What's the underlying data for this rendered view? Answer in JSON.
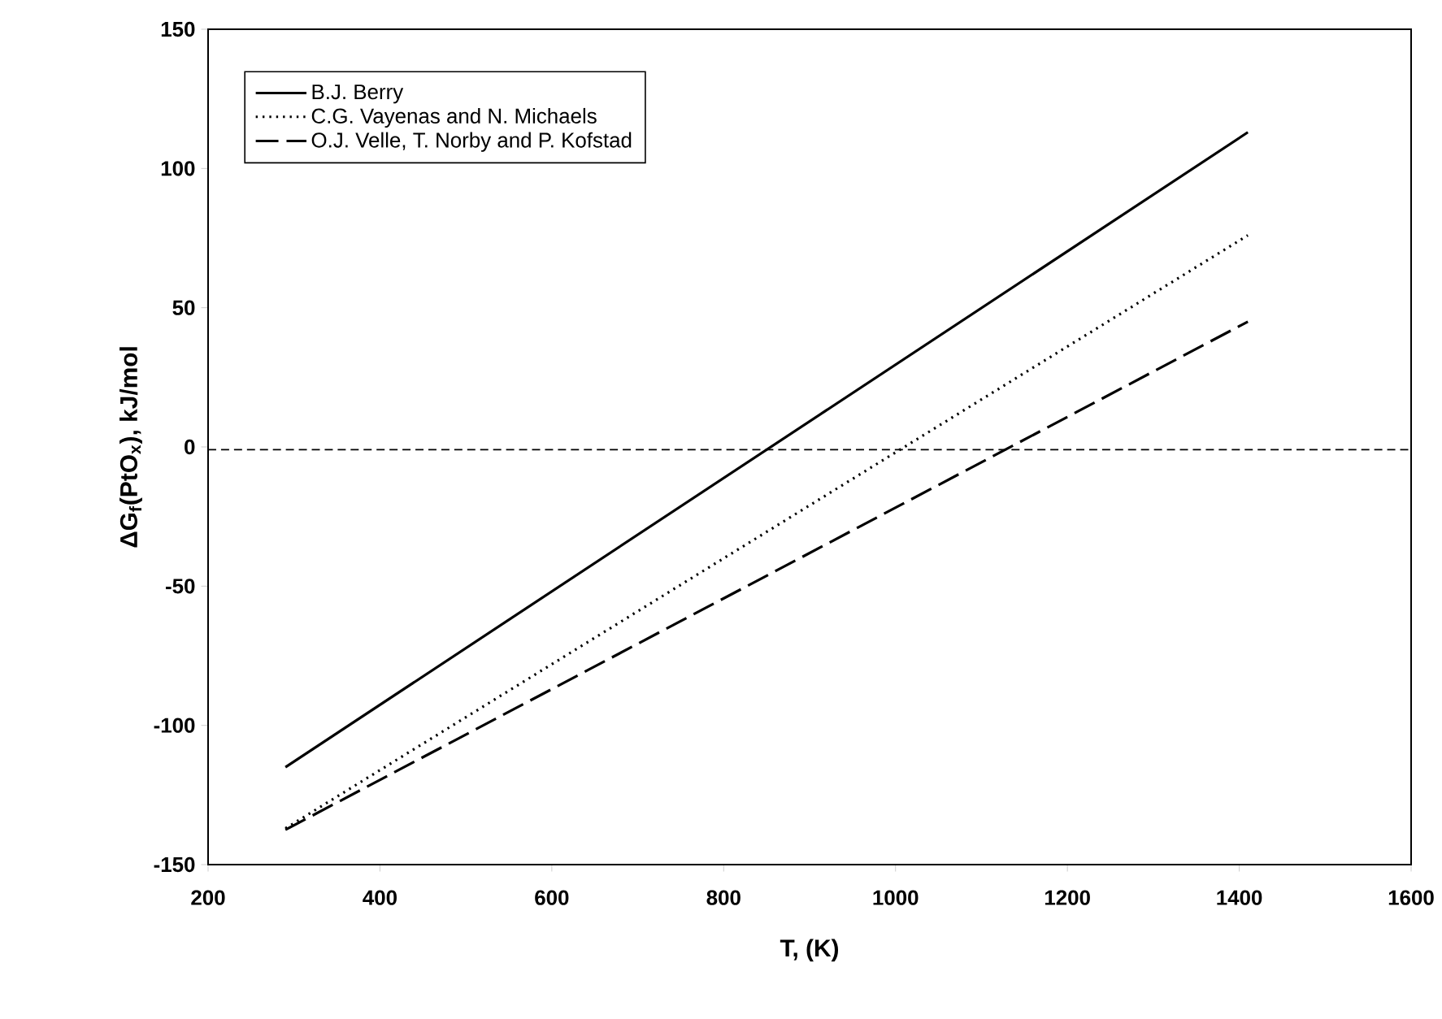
{
  "chart_data": {
    "type": "line",
    "xlabel": "T, (K)",
    "ylabel": "ΔG$_{f}$(PtO$_{x}$), kJ/mol",
    "xlim": [
      200,
      1600
    ],
    "xticks": [
      200,
      400,
      600,
      800,
      1000,
      1200,
      1400,
      1600
    ],
    "ylim": [
      -150,
      150
    ],
    "yticks": [
      -150,
      -100,
      -50,
      0,
      50,
      100,
      150
    ],
    "x": [
      290,
      1410
    ],
    "series": [
      {
        "name": "B.J. Berry",
        "color": "#000000",
        "line_style": "solid",
        "values": [
          -115,
          113
        ]
      },
      {
        "name": "C.G. Vayenas and N. Michaels",
        "color": "#000000",
        "line_style": "dotted",
        "values": [
          -137,
          76
        ]
      },
      {
        "name": "O.J. Velle, T. Norby and P. Kofstad",
        "color": "#000000",
        "line_style": "dashed",
        "values": [
          -137.5,
          45
        ]
      }
    ],
    "ref_lines": [
      {
        "axis": "y",
        "value": -1,
        "line_style": "dashed",
        "color": "#000000"
      }
    ],
    "legend": "top left",
    "grid": false
  }
}
